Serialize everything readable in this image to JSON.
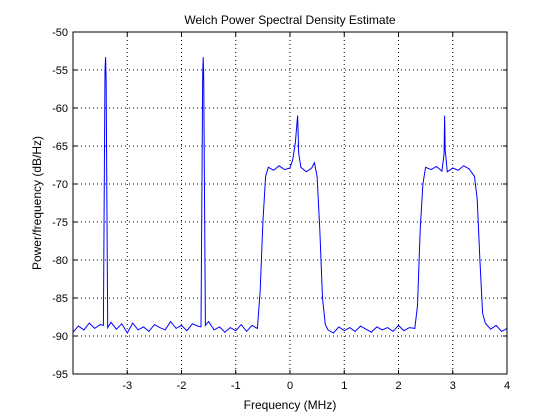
{
  "chart_data": {
    "type": "line",
    "title": "Welch Power Spectral Density Estimate",
    "xlabel": "Frequency (MHz)",
    "ylabel": "Power/frequency (dB/Hz)",
    "xlim": [
      -4,
      4
    ],
    "ylim": [
      -95,
      -50
    ],
    "grid": true,
    "x_ticks": [
      -3,
      -2,
      -1,
      0,
      1,
      2,
      3,
      4
    ],
    "x_tick_labels": [
      "-3",
      "-2",
      "-1",
      "0",
      "1",
      "2",
      "3",
      "4"
    ],
    "y_ticks": [
      -95,
      -90,
      -85,
      -80,
      -75,
      -70,
      -65,
      -60,
      -55,
      -50
    ],
    "y_tick_labels": [
      "-95",
      "-90",
      "-85",
      "-80",
      "-75",
      "-70",
      "-65",
      "-60",
      "-55",
      "-50"
    ],
    "line_color": "#0000ff",
    "series": [
      {
        "x": [
          -4.0,
          -3.9,
          -3.8,
          -3.7,
          -3.6,
          -3.5,
          -3.44,
          -3.41,
          -3.4,
          -3.39,
          -3.36,
          -3.3,
          -3.2,
          -3.1,
          -3.0,
          -2.9,
          -2.8,
          -2.7,
          -2.6,
          -2.5,
          -2.4,
          -2.3,
          -2.2,
          -2.1,
          -2.0,
          -1.9,
          -1.8,
          -1.7,
          -1.64,
          -1.61,
          -1.6,
          -1.59,
          -1.56,
          -1.5,
          -1.4,
          -1.3,
          -1.2,
          -1.1,
          -1.0,
          -0.9,
          -0.8,
          -0.7,
          -0.6,
          -0.55,
          -0.5,
          -0.45,
          -0.4,
          -0.3,
          -0.2,
          -0.1,
          0.0,
          0.05,
          0.1,
          0.14,
          0.15,
          0.16,
          0.2,
          0.3,
          0.4,
          0.45,
          0.5,
          0.55,
          0.6,
          0.65,
          0.7,
          0.8,
          0.9,
          1.0,
          1.1,
          1.2,
          1.3,
          1.4,
          1.5,
          1.6,
          1.7,
          1.8,
          1.9,
          2.0,
          2.1,
          2.2,
          2.3,
          2.35,
          2.4,
          2.45,
          2.5,
          2.6,
          2.7,
          2.8,
          2.84,
          2.85,
          2.86,
          2.9,
          3.0,
          3.1,
          3.2,
          3.3,
          3.4,
          3.45,
          3.5,
          3.55,
          3.6,
          3.7,
          3.8,
          3.9,
          4.0
        ],
        "y": [
          -89.5,
          -88.7,
          -89.2,
          -88.3,
          -89.0,
          -88.5,
          -88.6,
          -55.0,
          -53.3,
          -56.0,
          -88.9,
          -88.2,
          -89.1,
          -88.4,
          -89.6,
          -88.3,
          -89.2,
          -88.8,
          -89.4,
          -88.5,
          -88.9,
          -89.2,
          -88.1,
          -89.0,
          -88.6,
          -89.3,
          -88.4,
          -88.7,
          -88.8,
          -55.5,
          -53.3,
          -55.8,
          -88.6,
          -88.1,
          -89.2,
          -88.8,
          -89.5,
          -88.9,
          -89.3,
          -88.5,
          -89.4,
          -88.6,
          -89.0,
          -84.0,
          -75.0,
          -69.0,
          -67.8,
          -68.2,
          -67.6,
          -68.1,
          -67.9,
          -66.8,
          -64.5,
          -61.0,
          -63.0,
          -66.0,
          -67.8,
          -68.4,
          -67.9,
          -67.2,
          -69.0,
          -76.0,
          -85.0,
          -88.5,
          -89.2,
          -89.6,
          -88.8,
          -89.3,
          -88.9,
          -89.4,
          -88.7,
          -89.1,
          -89.5,
          -88.8,
          -89.2,
          -88.9,
          -89.4,
          -88.6,
          -89.3,
          -88.9,
          -89.0,
          -86.0,
          -76.0,
          -70.0,
          -67.8,
          -68.1,
          -67.7,
          -68.3,
          -66.0,
          -61.0,
          -65.5,
          -68.4,
          -67.9,
          -68.2,
          -67.6,
          -68.0,
          -69.0,
          -72.0,
          -80.0,
          -87.0,
          -88.3,
          -89.1,
          -88.6,
          -89.4,
          -89.0
        ]
      }
    ]
  }
}
